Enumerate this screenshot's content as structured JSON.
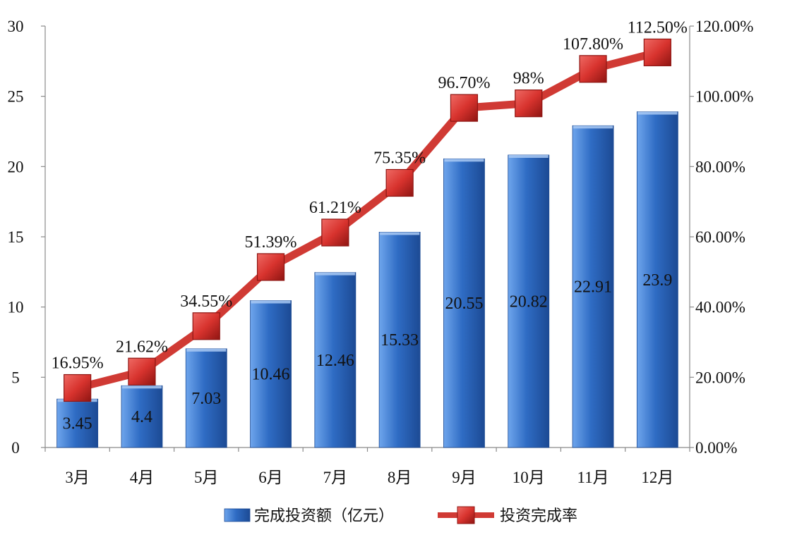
{
  "chart_data": {
    "type": "bar",
    "categories": [
      "3月",
      "4月",
      "5月",
      "6月",
      "7月",
      "8月",
      "9月",
      "10月",
      "11月",
      "12月"
    ],
    "series": [
      {
        "name": "完成投资额（亿元）",
        "type": "bar",
        "axis": "left",
        "values": [
          3.45,
          4.4,
          7.03,
          10.46,
          12.46,
          15.33,
          20.55,
          20.82,
          22.91,
          23.9
        ],
        "labels": [
          "3.45",
          "4.4",
          "7.03",
          "10.46",
          "12.46",
          "15.33",
          "20.55",
          "20.82",
          "22.91",
          "23.9"
        ]
      },
      {
        "name": "投资完成率",
        "type": "line",
        "axis": "right",
        "values": [
          16.95,
          21.62,
          34.55,
          51.39,
          61.21,
          75.35,
          96.7,
          98,
          107.8,
          112.5
        ],
        "labels": [
          "16.95%",
          "21.62%",
          "34.55%",
          "51.39%",
          "61.21%",
          "75.35%",
          "96.70%",
          "98%",
          "107.80%",
          "112.50%"
        ]
      }
    ],
    "y_left": {
      "min": 0,
      "max": 30,
      "ticks": [
        0,
        5,
        10,
        15,
        20,
        25,
        30
      ],
      "tick_labels": [
        "0",
        "5",
        "10",
        "15",
        "20",
        "25",
        "30"
      ]
    },
    "y_right": {
      "min": 0,
      "max": 120,
      "ticks": [
        0,
        20,
        40,
        60,
        80,
        100,
        120
      ],
      "tick_labels": [
        "0.00%",
        "20.00%",
        "40.00%",
        "60.00%",
        "80.00%",
        "100.00%",
        "120.00%"
      ]
    },
    "grid": false,
    "legend_position": "bottom",
    "colors": {
      "bar": "#2f6cc4",
      "bar_light": "#6ea5ec",
      "bar_dark": "#1c4a94",
      "line": "#d03a34",
      "marker": "#d8332e",
      "marker_dark": "#8e1512",
      "axis": "#8a8a8a"
    }
  }
}
